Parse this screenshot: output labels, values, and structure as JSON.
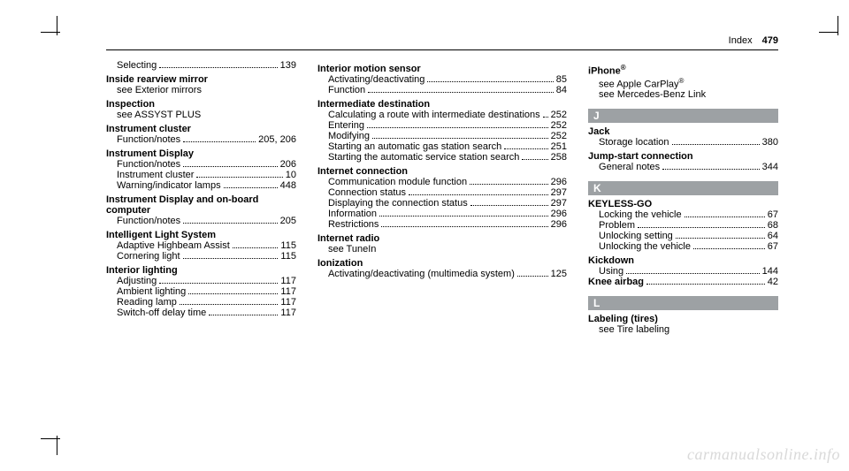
{
  "header": {
    "label": "Index",
    "page": "479"
  },
  "watermark": "carmanualsonline.info",
  "col1": [
    {
      "type": "line",
      "indent": true,
      "label": "Selecting",
      "page": "139"
    },
    {
      "type": "topic",
      "label": "Inside rearview mirror"
    },
    {
      "type": "see",
      "label": "see Exterior mirrors"
    },
    {
      "type": "topic",
      "label": "Inspection"
    },
    {
      "type": "see",
      "label": "see ASSYST PLUS"
    },
    {
      "type": "topic",
      "label": "Instrument cluster"
    },
    {
      "type": "line",
      "indent": true,
      "label": "Function/notes",
      "page": "205, 206"
    },
    {
      "type": "topic",
      "label": "Instrument Display"
    },
    {
      "type": "line",
      "indent": true,
      "label": "Function/notes",
      "page": "206"
    },
    {
      "type": "line",
      "indent": true,
      "label": "Instrument cluster",
      "page": "10"
    },
    {
      "type": "line",
      "indent": true,
      "label": "Warning/indicator lamps",
      "page": "448"
    },
    {
      "type": "topic",
      "label": "Instrument Display and on-board computer"
    },
    {
      "type": "line",
      "indent": true,
      "label": "Function/notes",
      "page": "205"
    },
    {
      "type": "topic",
      "label": "Intelligent Light System"
    },
    {
      "type": "line",
      "indent": true,
      "label": "Adaptive Highbeam Assist",
      "page": "115"
    },
    {
      "type": "line",
      "indent": true,
      "label": "Cornering light",
      "page": "115"
    },
    {
      "type": "topic",
      "label": "Interior lighting"
    },
    {
      "type": "line",
      "indent": true,
      "label": "Adjusting",
      "page": "117"
    },
    {
      "type": "line",
      "indent": true,
      "label": "Ambient lighting",
      "page": "117"
    },
    {
      "type": "line",
      "indent": true,
      "label": "Reading lamp",
      "page": "117"
    },
    {
      "type": "line",
      "indent": true,
      "label": "Switch-off delay time",
      "page": "117"
    }
  ],
  "col2": [
    {
      "type": "topic",
      "label": "Interior motion sensor"
    },
    {
      "type": "line",
      "indent": true,
      "label": "Activating/deactivating",
      "page": "85"
    },
    {
      "type": "line",
      "indent": true,
      "label": "Function",
      "page": "84"
    },
    {
      "type": "topic",
      "label": "Intermediate destination"
    },
    {
      "type": "line",
      "indent": true,
      "label": "Calculating a route with intermediate destinations",
      "page": "252"
    },
    {
      "type": "line",
      "indent": true,
      "label": "Entering",
      "page": "252"
    },
    {
      "type": "line",
      "indent": true,
      "label": "Modifying",
      "page": "252"
    },
    {
      "type": "line",
      "indent": true,
      "label": "Starting an automatic gas station search",
      "page": "251"
    },
    {
      "type": "line",
      "indent": true,
      "label": "Starting the automatic service station search",
      "page": "258"
    },
    {
      "type": "topic",
      "label": "Internet connection"
    },
    {
      "type": "line",
      "indent": true,
      "label": "Communication module function",
      "page": "296"
    },
    {
      "type": "line",
      "indent": true,
      "label": "Connection status",
      "page": "297"
    },
    {
      "type": "line",
      "indent": true,
      "label": "Displaying the connection status",
      "page": "297"
    },
    {
      "type": "line",
      "indent": true,
      "label": "Information",
      "page": "296"
    },
    {
      "type": "line",
      "indent": true,
      "label": "Restrictions",
      "page": "296"
    },
    {
      "type": "topic",
      "label": "Internet radio"
    },
    {
      "type": "see",
      "label": "see TuneIn"
    },
    {
      "type": "topic",
      "label": "Ionization"
    },
    {
      "type": "line",
      "indent": true,
      "label": "Activating/deactivating (multimedia system)",
      "page": "125"
    }
  ],
  "col3": [
    {
      "type": "topic",
      "label": "iPhone",
      "sup": "®"
    },
    {
      "type": "see",
      "label": "see Apple CarPlay",
      "sup": "®"
    },
    {
      "type": "see",
      "label": "see Mercedes-Benz Link"
    },
    {
      "type": "letter",
      "label": "J"
    },
    {
      "type": "topic",
      "label": "Jack"
    },
    {
      "type": "line",
      "indent": true,
      "label": "Storage location",
      "page": "380"
    },
    {
      "type": "topic",
      "label": "Jump-start connection"
    },
    {
      "type": "line",
      "indent": true,
      "label": "General notes",
      "page": "344"
    },
    {
      "type": "letter",
      "label": "K"
    },
    {
      "type": "topic",
      "label": "KEYLESS-GO"
    },
    {
      "type": "line",
      "indent": true,
      "label": "Locking the vehicle",
      "page": "67"
    },
    {
      "type": "line",
      "indent": true,
      "label": "Problem",
      "page": "68"
    },
    {
      "type": "line",
      "indent": true,
      "label": "Unlocking setting",
      "page": "64"
    },
    {
      "type": "line",
      "indent": true,
      "label": "Unlocking the vehicle",
      "page": "67"
    },
    {
      "type": "topic",
      "label": "Kickdown"
    },
    {
      "type": "line",
      "indent": true,
      "label": "Using",
      "page": "144"
    },
    {
      "type": "lineb",
      "label": "Knee airbag",
      "page": "42"
    },
    {
      "type": "letter",
      "label": "L"
    },
    {
      "type": "topic",
      "label": "Labeling (tires)"
    },
    {
      "type": "see",
      "label": "see Tire labeling"
    }
  ]
}
